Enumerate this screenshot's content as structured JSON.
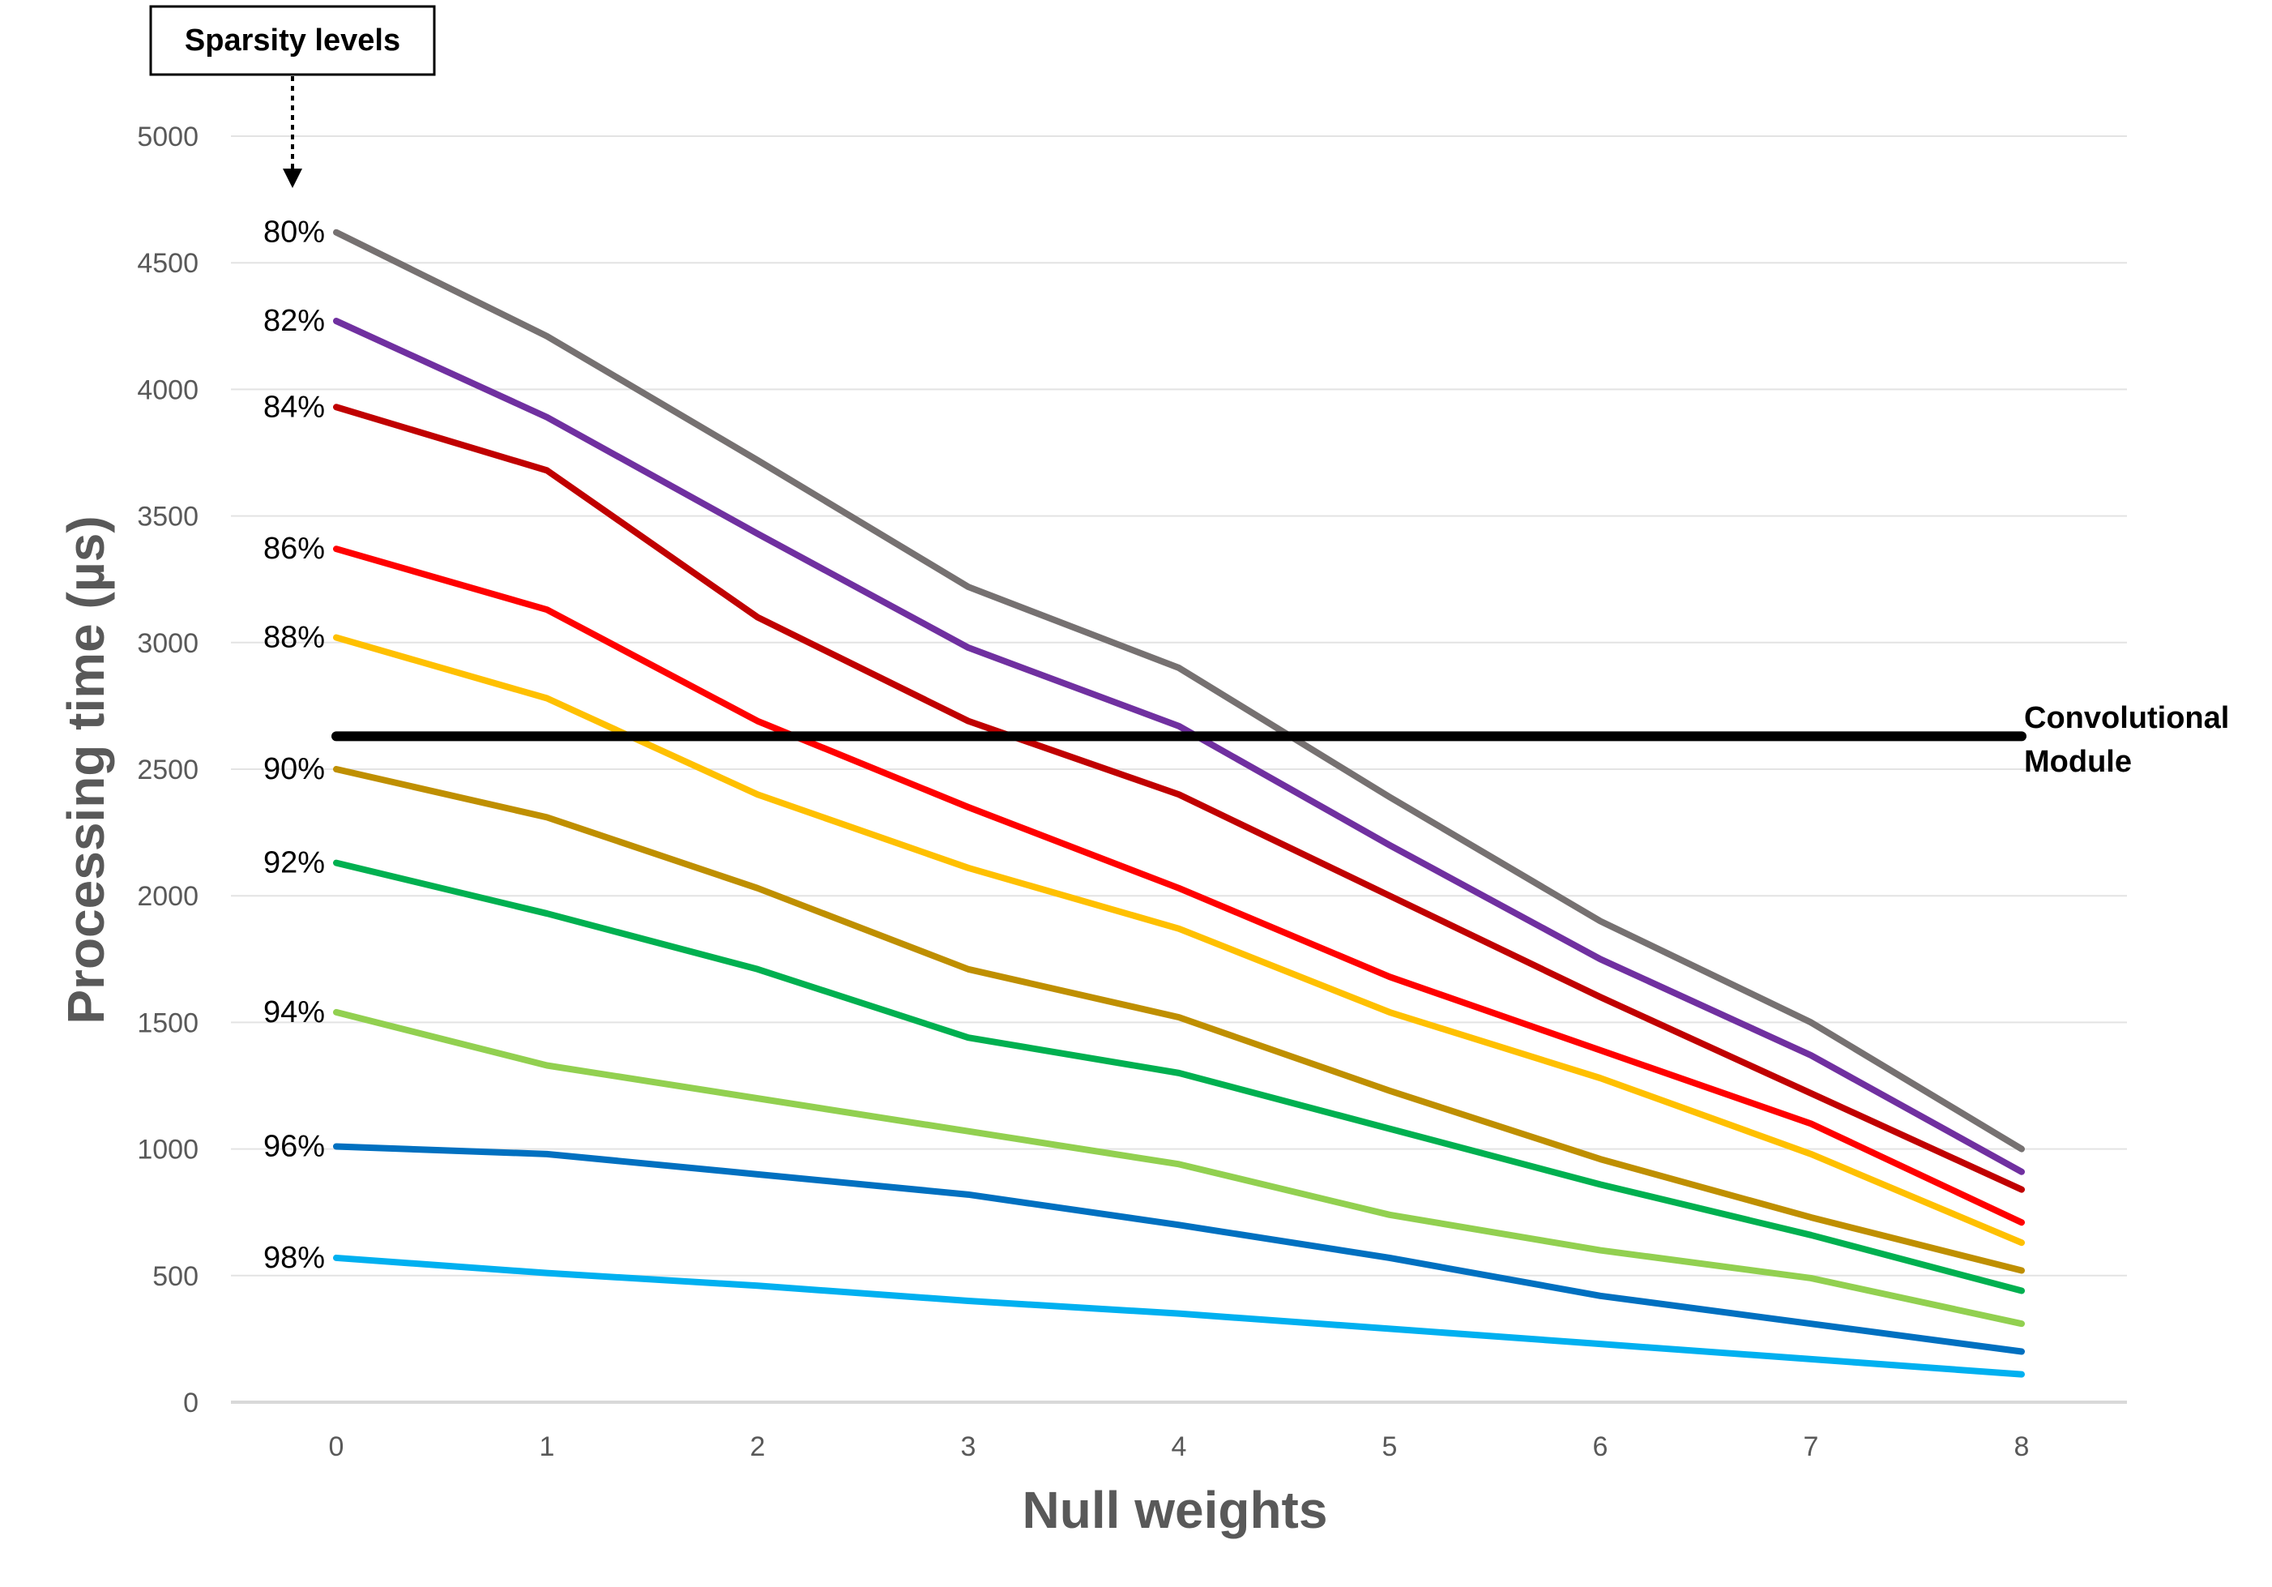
{
  "chart_data": {
    "type": "line",
    "xlabel": "Null weights",
    "ylabel": "Processing time (µs)",
    "x": [
      0,
      1,
      2,
      3,
      4,
      5,
      6,
      7,
      8
    ],
    "xlim": [
      -0.5,
      8.5
    ],
    "ylim": [
      0,
      5000
    ],
    "yticks": [
      0,
      500,
      1000,
      1500,
      2000,
      2500,
      3000,
      3500,
      4000,
      4500,
      5000
    ],
    "grid": "horizontal",
    "legend": "none",
    "series_label_header": "Sparsity levels",
    "series": [
      {
        "name": "80%",
        "color": "#767171",
        "values": [
          4620,
          4210,
          3720,
          3220,
          2900,
          2390,
          1900,
          1500,
          1000
        ]
      },
      {
        "name": "82%",
        "color": "#7030A0",
        "values": [
          4270,
          3890,
          3430,
          2980,
          2670,
          2200,
          1750,
          1370,
          910
        ]
      },
      {
        "name": "84%",
        "color": "#C00000",
        "values": [
          3930,
          3680,
          3100,
          2690,
          2400,
          2000,
          1600,
          1220,
          840
        ]
      },
      {
        "name": "86%",
        "color": "#FF0000",
        "values": [
          3370,
          3130,
          2690,
          2350,
          2030,
          1680,
          1390,
          1100,
          710
        ]
      },
      {
        "name": "88%",
        "color": "#FFC000",
        "values": [
          3020,
          2780,
          2400,
          2110,
          1870,
          1540,
          1280,
          980,
          630
        ]
      },
      {
        "name": "90%",
        "color": "#BF8F00",
        "values": [
          2500,
          2310,
          2030,
          1710,
          1520,
          1230,
          960,
          730,
          520
        ]
      },
      {
        "name": "92%",
        "color": "#00B050",
        "values": [
          2130,
          1930,
          1710,
          1440,
          1300,
          1080,
          860,
          660,
          440
        ]
      },
      {
        "name": "94%",
        "color": "#92D050",
        "values": [
          1540,
          1330,
          1200,
          1070,
          940,
          740,
          600,
          490,
          310
        ]
      },
      {
        "name": "96%",
        "color": "#0070C0",
        "values": [
          1010,
          980,
          900,
          820,
          700,
          570,
          420,
          310,
          200
        ]
      },
      {
        "name": "98%",
        "color": "#00B0F0",
        "values": [
          570,
          510,
          460,
          400,
          350,
          290,
          230,
          170,
          110
        ]
      }
    ],
    "reference_line": {
      "name": "Convolutional Module",
      "label_lines": [
        "Convolutional",
        "Module"
      ],
      "value": 2630,
      "color": "#000000"
    }
  }
}
